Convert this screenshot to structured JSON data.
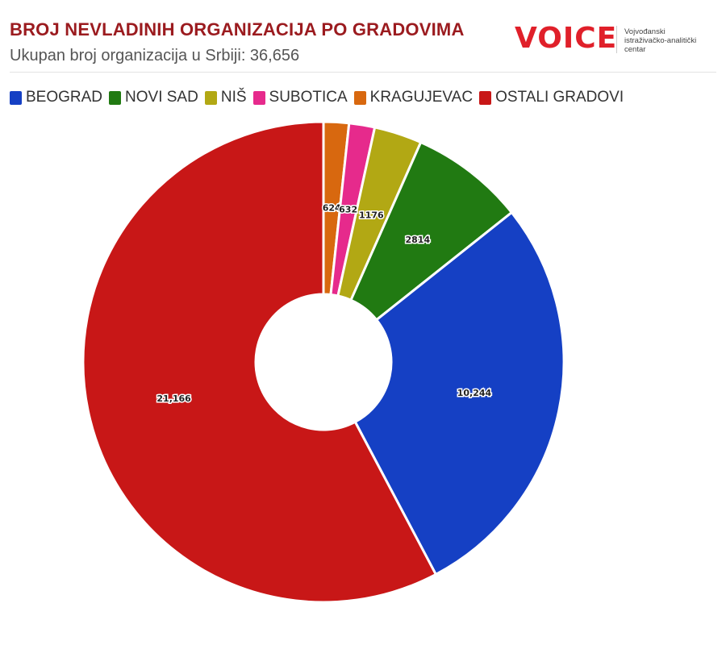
{
  "header": {
    "title": "BROJ NEVLADINIH ORGANIZACIJA PO GRADOVIMA",
    "subtitle": "Ukupan broj organizacija u Srbiji: 36,656"
  },
  "logo": {
    "word": "VOICE",
    "tagline_line1": "Vojvođanski",
    "tagline_line2": "istraživačko-analitički",
    "tagline_line3": "centar",
    "brand_color": "#e0202a"
  },
  "chart_data": {
    "type": "pie",
    "variant": "donut",
    "title": "BROJ NEVLADINIH ORGANIZACIJA PO GRADOVIMA",
    "subtitle": "Ukupan broj organizacija u Srbiji: 36,656",
    "legend_position": "top-left",
    "categories": [
      "BEOGRAD",
      "NOVI SAD",
      "NIŠ",
      "SUBOTICA",
      "KRAGUJEVAC",
      "OSTALI GRADOVI"
    ],
    "values": [
      10244,
      2814,
      1176,
      632,
      624,
      21166
    ],
    "labels": [
      "10,244",
      "2814",
      "1176",
      "632",
      "624",
      "21,166"
    ],
    "colors": [
      "#1540c4",
      "#217a12",
      "#b2a814",
      "#e62a8c",
      "#d8680f",
      "#c81717"
    ],
    "start_category": "KRAGUJEVAC",
    "direction": "clockwise",
    "slice_order": [
      "KRAGUJEVAC",
      "SUBOTICA",
      "NIŠ",
      "NOVI SAD",
      "BEOGRAD",
      "OSTALI GRADOVI"
    ]
  }
}
